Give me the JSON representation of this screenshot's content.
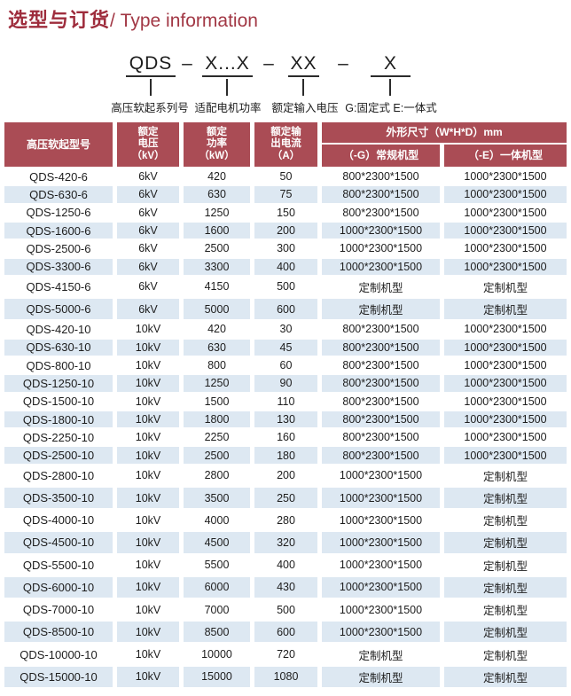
{
  "page": {
    "title_zh": "选型与订货",
    "title_en": "/ Type information"
  },
  "model_code": {
    "separator": "–",
    "segments": [
      {
        "code": "QDS",
        "label": "高压软起系列号"
      },
      {
        "code": "X...X",
        "label": "适配电机功率"
      },
      {
        "code": "XX",
        "label": "额定输入电压"
      },
      {
        "code": "X",
        "label": "G:固定式 E:一体式"
      }
    ]
  },
  "table": {
    "headers": {
      "model": "高压软起型号",
      "voltage": [
        "额定",
        "电压",
        "（kV）"
      ],
      "power": [
        "额定",
        "功率",
        "（kW）"
      ],
      "current": [
        "额定输",
        "出电流",
        "（A）"
      ],
      "dimensions": "外形尺寸（W*H*D）mm",
      "dim_g": "（-G）常规机型",
      "dim_e": "（-E）一体机型"
    },
    "rows": [
      [
        "QDS-420-6",
        "6kV",
        "420",
        "50",
        "800*2300*1500",
        "1000*2300*1500"
      ],
      [
        "QDS-630-6",
        "6kV",
        "630",
        "75",
        "800*2300*1500",
        "1000*2300*1500"
      ],
      [
        "QDS-1250-6",
        "6kV",
        "1250",
        "150",
        "800*2300*1500",
        "1000*2300*1500"
      ],
      [
        "QDS-1600-6",
        "6kV",
        "1600",
        "200",
        "1000*2300*1500",
        "1000*2300*1500"
      ],
      [
        "QDS-2500-6",
        "6kV",
        "2500",
        "300",
        "1000*2300*1500",
        "1000*2300*1500"
      ],
      [
        "QDS-3300-6",
        "6kV",
        "3300",
        "400",
        "1000*2300*1500",
        "1000*2300*1500"
      ],
      [
        "QDS-4150-6",
        "6kV",
        "4150",
        "500",
        "定制机型",
        "定制机型"
      ],
      [
        "QDS-5000-6",
        "6kV",
        "5000",
        "600",
        "定制机型",
        "定制机型"
      ],
      [
        "QDS-420-10",
        "10kV",
        "420",
        "30",
        "800*2300*1500",
        "1000*2300*1500"
      ],
      [
        "QDS-630-10",
        "10kV",
        "630",
        "45",
        "800*2300*1500",
        "1000*2300*1500"
      ],
      [
        "QDS-800-10",
        "10kV",
        "800",
        "60",
        "800*2300*1500",
        "1000*2300*1500"
      ],
      [
        "QDS-1250-10",
        "10kV",
        "1250",
        "90",
        "800*2300*1500",
        "1000*2300*1500"
      ],
      [
        "QDS-1500-10",
        "10kV",
        "1500",
        "110",
        "800*2300*1500",
        "1000*2300*1500"
      ],
      [
        "QDS-1800-10",
        "10kV",
        "1800",
        "130",
        "800*2300*1500",
        "1000*2300*1500"
      ],
      [
        "QDS-2250-10",
        "10kV",
        "2250",
        "160",
        "800*2300*1500",
        "1000*2300*1500"
      ],
      [
        "QDS-2500-10",
        "10kV",
        "2500",
        "180",
        "800*2300*1500",
        "1000*2300*1500"
      ],
      [
        "QDS-2800-10",
        "10kV",
        "2800",
        "200",
        "1000*2300*1500",
        "定制机型"
      ],
      [
        "QDS-3500-10",
        "10kV",
        "3500",
        "250",
        "1000*2300*1500",
        "定制机型"
      ],
      [
        "QDS-4000-10",
        "10kV",
        "4000",
        "280",
        "1000*2300*1500",
        "定制机型"
      ],
      [
        "QDS-4500-10",
        "10kV",
        "4500",
        "320",
        "1000*2300*1500",
        "定制机型"
      ],
      [
        "QDS-5500-10",
        "10kV",
        "5500",
        "400",
        "1000*2300*1500",
        "定制机型"
      ],
      [
        "QDS-6000-10",
        "10kV",
        "6000",
        "430",
        "1000*2300*1500",
        "定制机型"
      ],
      [
        "QDS-7000-10",
        "10kV",
        "7000",
        "500",
        "1000*2300*1500",
        "定制机型"
      ],
      [
        "QDS-8500-10",
        "10kV",
        "8500",
        "600",
        "1000*2300*1500",
        "定制机型"
      ],
      [
        "QDS-10000-10",
        "10kV",
        "10000",
        "720",
        "定制机型",
        "定制机型"
      ],
      [
        "QDS-15000-10",
        "10kV",
        "15000",
        "1080",
        "定制机型",
        "定制机型"
      ]
    ]
  },
  "colors": {
    "title_red": "#9e2c3c",
    "header_maroon": "#aa4c55",
    "stripe_blue": "#dde8f2"
  }
}
